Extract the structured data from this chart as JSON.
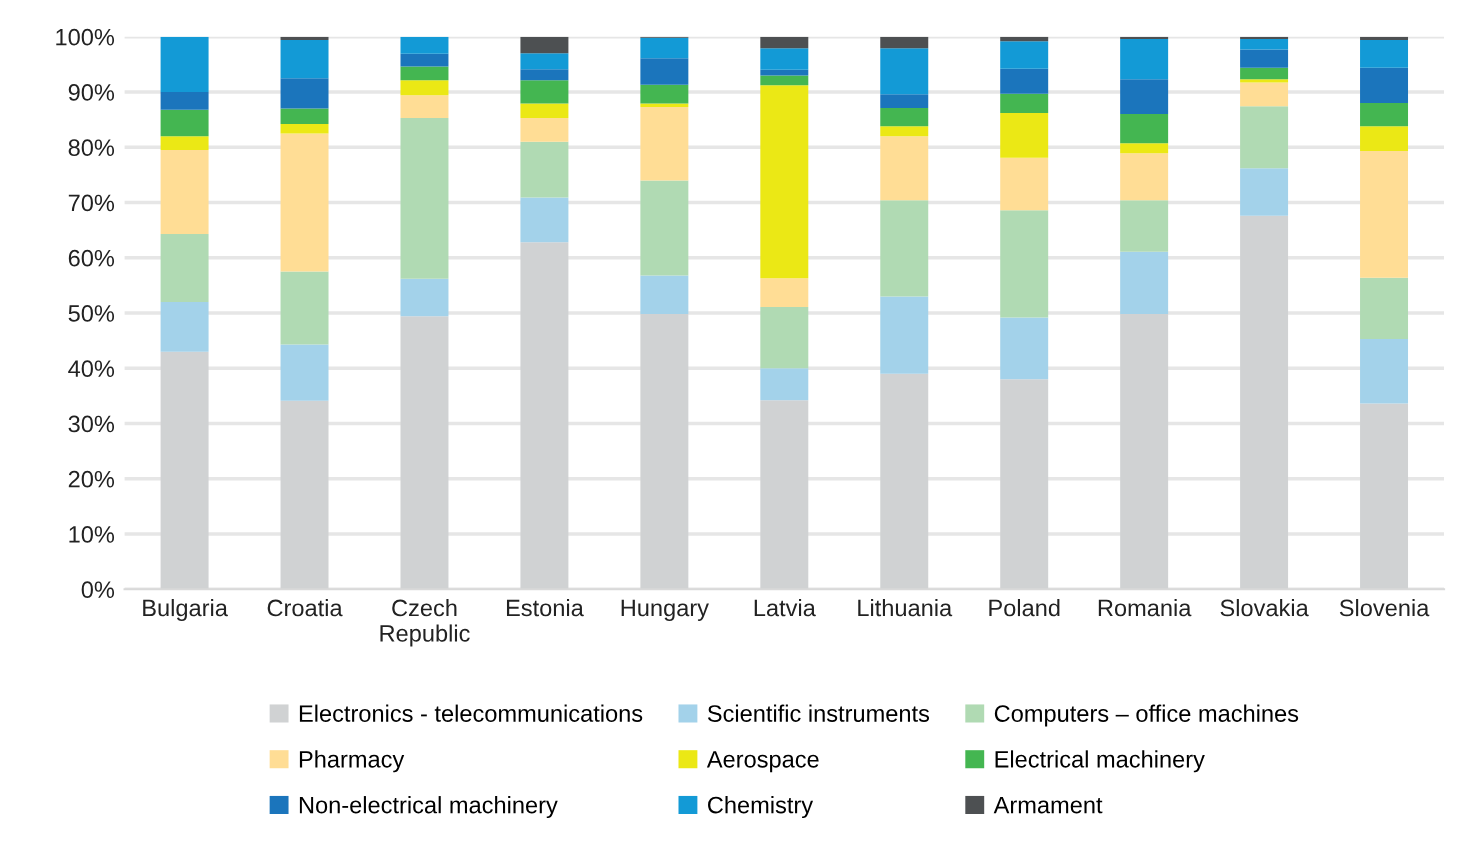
{
  "chart_data": {
    "type": "bar",
    "stacked": true,
    "categories": [
      "Bulgaria",
      "Croatia",
      "Czech\nRepublic",
      "Estonia",
      "Hungary",
      "Latvia",
      "Lithuania",
      "Poland",
      "Romania",
      "Slovakia",
      "Slovenia"
    ],
    "series": [
      {
        "name": "Electronics - telecommunications",
        "color": "#d0d2d3",
        "values": [
          43,
          34.1,
          49.4,
          62.8,
          49.8,
          34.2,
          39,
          38,
          49.8,
          67.6,
          33.6
        ]
      },
      {
        "name": "Scientific instruments",
        "color": "#a3d2ea",
        "values": [
          9,
          10.2,
          6.8,
          8.1,
          7,
          5.8,
          14,
          11.2,
          11.3,
          8.6,
          11.7
        ]
      },
      {
        "name": "Computers – office machines",
        "color": "#b0dab3",
        "values": [
          12.3,
          13.2,
          29.1,
          10.1,
          17.2,
          11.1,
          17.4,
          19.4,
          9.3,
          11.2,
          11.1
        ]
      },
      {
        "name": "Pharmacy",
        "color": "#ffdd95",
        "values": [
          15.2,
          25,
          4.1,
          4.3,
          13.3,
          5.2,
          11.6,
          9.5,
          8.5,
          4.3,
          22.9
        ]
      },
      {
        "name": "Aerospace",
        "color": "#ebe815",
        "values": [
          2.5,
          1.7,
          2.7,
          2.6,
          0.6,
          34.9,
          1.8,
          8.1,
          1.8,
          0.6,
          4.5
        ]
      },
      {
        "name": "Electrical machinery",
        "color": "#44b651",
        "values": [
          4.8,
          2.8,
          2.5,
          4.2,
          3.4,
          1.8,
          3.3,
          3.5,
          5.3,
          2.1,
          4.2
        ]
      },
      {
        "name": "Non-electrical machinery",
        "color": "#1b75bc",
        "values": [
          3.2,
          5.5,
          2.3,
          2,
          4.8,
          1,
          2.5,
          4.5,
          6.3,
          3.3,
          6.4
        ]
      },
      {
        "name": "Chemistry",
        "color": "#139ad6",
        "values": [
          10,
          6.9,
          3.1,
          2.9,
          3.7,
          3.9,
          8.3,
          5,
          7.3,
          1.9,
          5
        ]
      },
      {
        "name": "Armament",
        "color": "#4d5052",
        "values": [
          0,
          0.6,
          0,
          3,
          0.2,
          2.1,
          2.1,
          0.8,
          0.4,
          0.4,
          0.6
        ]
      }
    ],
    "ylim": [
      0,
      100
    ],
    "yticks": [
      {
        "value": 0,
        "label": "0%"
      },
      {
        "value": 10,
        "label": "10%"
      },
      {
        "value": 20,
        "label": "20%"
      },
      {
        "value": 30,
        "label": "30%"
      },
      {
        "value": 40,
        "label": "40%"
      },
      {
        "value": 50,
        "label": "50%"
      },
      {
        "value": 60,
        "label": "60%"
      },
      {
        "value": 70,
        "label": "70%"
      },
      {
        "value": 80,
        "label": "80%"
      },
      {
        "value": 90,
        "label": "90%"
      },
      {
        "value": 100,
        "label": "100%"
      }
    ],
    "grid": "y",
    "legend": "bottom"
  }
}
